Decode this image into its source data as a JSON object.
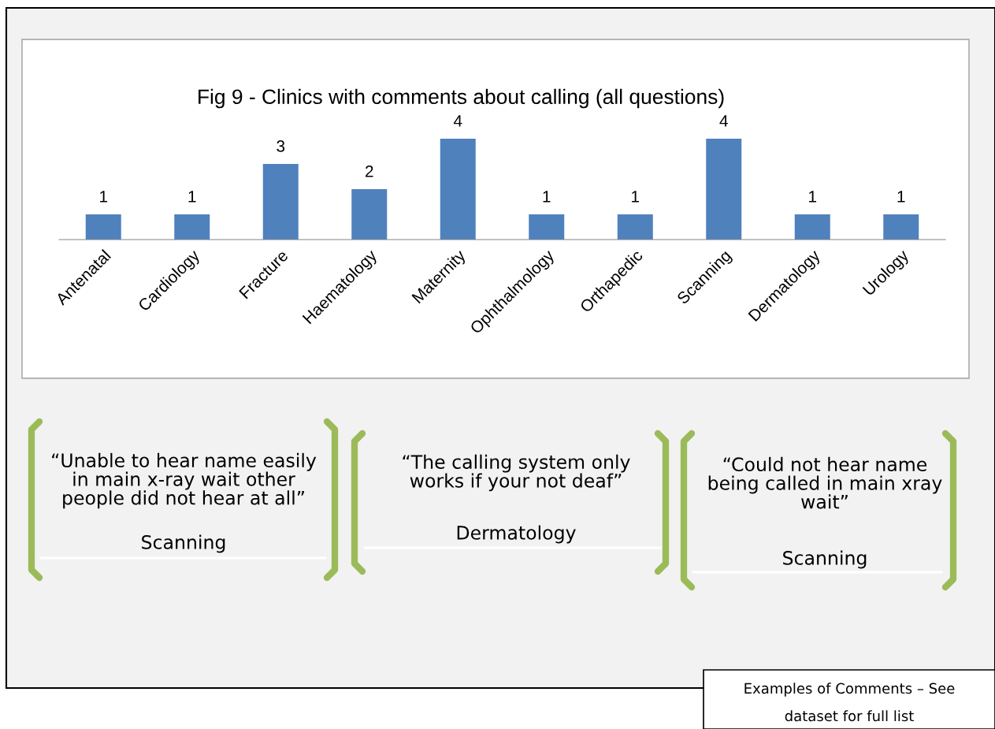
{
  "chart_data": {
    "type": "bar",
    "title": "Fig 9 - Clinics with comments about calling (all questions)",
    "categories": [
      "Antenatal",
      "Cardiology",
      "Fracture",
      "Haematology",
      "Maternity",
      "Ophthalmology",
      "Orthapedic",
      "Scanning",
      "Dermatology",
      "Urology"
    ],
    "values": [
      1,
      1,
      3,
      2,
      4,
      1,
      1,
      4,
      1,
      1
    ],
    "color": "#4f81bd",
    "data_labels": true,
    "grid": false,
    "legend": false,
    "annotations": [
      "“Unable to hear name easily\nin main x-ray wait other\npeople did not hear at all”",
      "Scanning",
      "“The calling system only\nworks if your not deaf”",
      "Dermatology",
      "“Could not hear name\nbeing called in main xray\nwait”",
      "Scanning",
      "Examples of Comments – See",
      "dataset for full list"
    ]
  }
}
